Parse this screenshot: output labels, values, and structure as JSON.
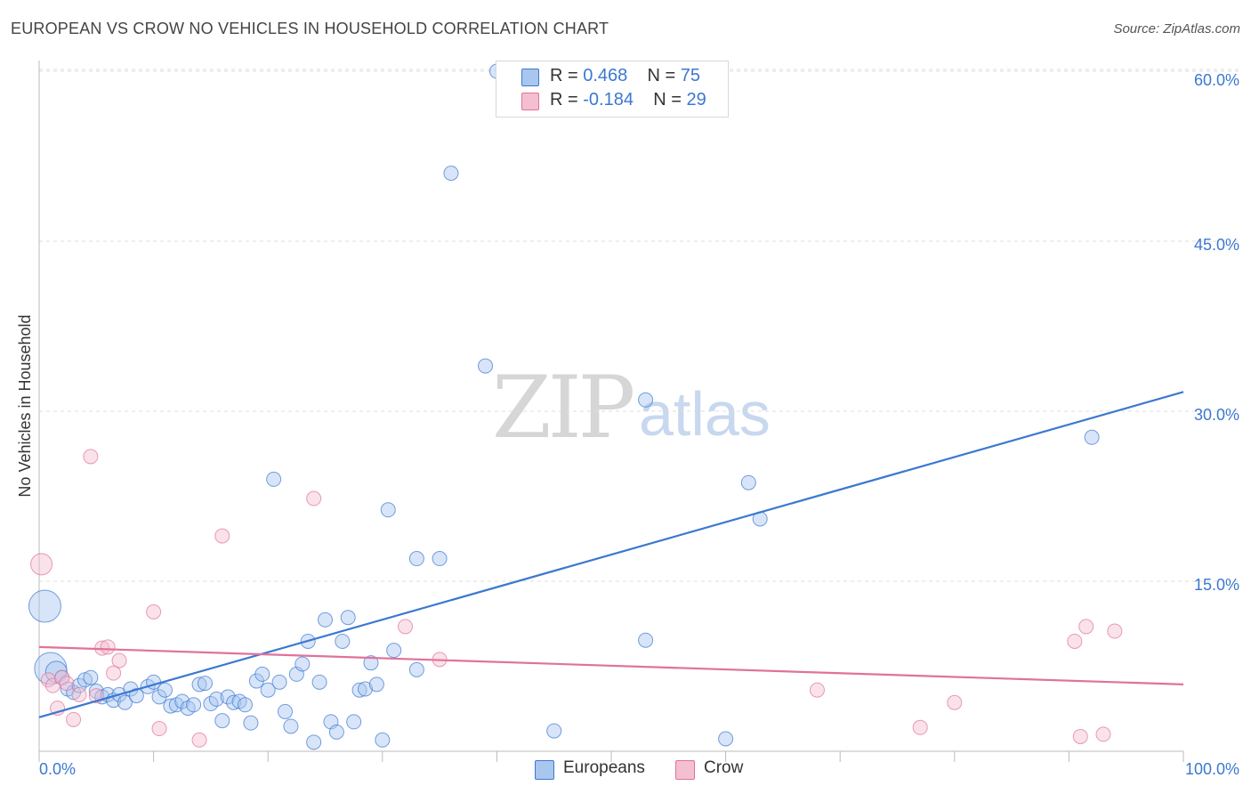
{
  "title": "EUROPEAN VS CROW NO VEHICLES IN HOUSEHOLD CORRELATION CHART",
  "source": "Source: ZipAtlas.com",
  "watermark": {
    "left": "ZIP",
    "right": "atlas"
  },
  "colors": {
    "blue": "#3b78d1",
    "blue_fill": "#a9c6ef",
    "pink": "#e0729a",
    "pink_fill": "#f4bfd0",
    "grid": "#dddddd",
    "axis_label": "#3b78d1"
  },
  "legend": {
    "rows": [
      {
        "r_label": "R = ",
        "r_value": "0.468",
        "n_label": "N = ",
        "n_value": "75"
      },
      {
        "r_label": "R = ",
        "r_value": "-0.184",
        "n_label": "N = ",
        "n_value": "29"
      }
    ]
  },
  "bottom_legend": {
    "series1": "Europeans",
    "series2": "Crow"
  },
  "chart_data": {
    "type": "scatter",
    "title": "EUROPEAN VS CROW NO VEHICLES IN HOUSEHOLD CORRELATION CHART",
    "xlabel": "",
    "ylabel": "No Vehicles in Household",
    "xlim": [
      0,
      100
    ],
    "ylim": [
      0,
      60
    ],
    "x_tick_labels": [
      "0.0%",
      "100.0%"
    ],
    "y_tick_labels": [
      "15.0%",
      "30.0%",
      "45.0%",
      "60.0%"
    ],
    "y_ticks": [
      15,
      30,
      45,
      60
    ],
    "series": [
      {
        "name": "Europeans",
        "trend": {
          "x": [
            0,
            100
          ],
          "y": [
            3.0,
            31.7
          ]
        },
        "points": [
          [
            0.5,
            12.8,
            3
          ],
          [
            1.0,
            7.3,
            3
          ],
          [
            1.5,
            7.0,
            2
          ],
          [
            2.0,
            6.5,
            1
          ],
          [
            2.5,
            5.5,
            1
          ],
          [
            3.0,
            5.2,
            1
          ],
          [
            3.5,
            5.8,
            1
          ],
          [
            4.0,
            6.3,
            1
          ],
          [
            4.5,
            6.5,
            1
          ],
          [
            5.0,
            5.3,
            1
          ],
          [
            5.5,
            4.8,
            1
          ],
          [
            6.0,
            5.0,
            1
          ],
          [
            6.5,
            4.5,
            1
          ],
          [
            7.0,
            5.0,
            1
          ],
          [
            7.5,
            4.3,
            1
          ],
          [
            8.0,
            5.5,
            1
          ],
          [
            8.5,
            4.9,
            1
          ],
          [
            9.5,
            5.7,
            1
          ],
          [
            10.0,
            6.1,
            1
          ],
          [
            10.5,
            4.8,
            1
          ],
          [
            11.0,
            5.4,
            1
          ],
          [
            11.5,
            4.0,
            1
          ],
          [
            12.0,
            4.1,
            1
          ],
          [
            12.5,
            4.4,
            1
          ],
          [
            13.0,
            3.8,
            1
          ],
          [
            13.5,
            4.1,
            1
          ],
          [
            14.0,
            5.9,
            1
          ],
          [
            14.5,
            6.0,
            1
          ],
          [
            15.0,
            4.2,
            1
          ],
          [
            15.5,
            4.6,
            1
          ],
          [
            16.0,
            2.7,
            1
          ],
          [
            16.5,
            4.8,
            1
          ],
          [
            17.0,
            4.3,
            1
          ],
          [
            17.5,
            4.4,
            1
          ],
          [
            18.0,
            4.1,
            1
          ],
          [
            18.5,
            2.5,
            1
          ],
          [
            19.0,
            6.2,
            1
          ],
          [
            19.5,
            6.8,
            1
          ],
          [
            20.0,
            5.4,
            1
          ],
          [
            20.5,
            24.0,
            1
          ],
          [
            21.0,
            6.1,
            1
          ],
          [
            21.5,
            3.5,
            1
          ],
          [
            22.0,
            2.2,
            1
          ],
          [
            22.5,
            6.8,
            1
          ],
          [
            23.0,
            7.7,
            1
          ],
          [
            23.5,
            9.7,
            1
          ],
          [
            24.0,
            0.8,
            1
          ],
          [
            24.5,
            6.1,
            1
          ],
          [
            25.0,
            11.6,
            1
          ],
          [
            25.5,
            2.6,
            1
          ],
          [
            26.0,
            1.7,
            1
          ],
          [
            26.5,
            9.7,
            1
          ],
          [
            27.0,
            11.8,
            1
          ],
          [
            27.5,
            2.6,
            1
          ],
          [
            28.0,
            5.4,
            1
          ],
          [
            28.5,
            5.5,
            1
          ],
          [
            29.0,
            7.8,
            1
          ],
          [
            29.5,
            5.9,
            1
          ],
          [
            30.0,
            1.0,
            1
          ],
          [
            30.5,
            21.3,
            1
          ],
          [
            31.0,
            8.9,
            1
          ],
          [
            33.0,
            7.2,
            1
          ],
          [
            33.0,
            17.0,
            1
          ],
          [
            35.0,
            17.0,
            1
          ],
          [
            36.0,
            51.0,
            1
          ],
          [
            39.0,
            34.0,
            1
          ],
          [
            40.0,
            60.0,
            1
          ],
          [
            45.0,
            1.8,
            1
          ],
          [
            53.0,
            9.8,
            1
          ],
          [
            53.0,
            31.0,
            1
          ],
          [
            60.0,
            1.1,
            1
          ],
          [
            62.0,
            23.7,
            1
          ],
          [
            63.0,
            20.5,
            1
          ],
          [
            92.0,
            27.7,
            1
          ]
        ]
      },
      {
        "name": "Crow",
        "trend": {
          "x": [
            0,
            100
          ],
          "y": [
            9.2,
            5.9
          ]
        },
        "points": [
          [
            0.2,
            16.5,
            2
          ],
          [
            0.8,
            6.3,
            1
          ],
          [
            1.2,
            5.8,
            1
          ],
          [
            1.6,
            3.8,
            1
          ],
          [
            2.0,
            6.5,
            1
          ],
          [
            2.4,
            6.0,
            1
          ],
          [
            3.0,
            2.8,
            1
          ],
          [
            3.5,
            5.0,
            1
          ],
          [
            4.5,
            26.0,
            1
          ],
          [
            5.0,
            4.9,
            1
          ],
          [
            5.5,
            9.1,
            1
          ],
          [
            6.0,
            9.2,
            1
          ],
          [
            6.5,
            6.9,
            1
          ],
          [
            7.0,
            8.0,
            1
          ],
          [
            10.0,
            12.3,
            1
          ],
          [
            10.5,
            2.0,
            1
          ],
          [
            14.0,
            1.0,
            1
          ],
          [
            16.0,
            19.0,
            1
          ],
          [
            24.0,
            22.3,
            1
          ],
          [
            32.0,
            11.0,
            1
          ],
          [
            35.0,
            8.1,
            1
          ],
          [
            68.0,
            5.4,
            1
          ],
          [
            77.0,
            2.1,
            1
          ],
          [
            80.0,
            4.3,
            1
          ],
          [
            91.0,
            1.3,
            1
          ],
          [
            90.5,
            9.7,
            1
          ],
          [
            91.5,
            11.0,
            1
          ],
          [
            93.0,
            1.5,
            1
          ],
          [
            94.0,
            10.6,
            1
          ]
        ]
      }
    ]
  }
}
